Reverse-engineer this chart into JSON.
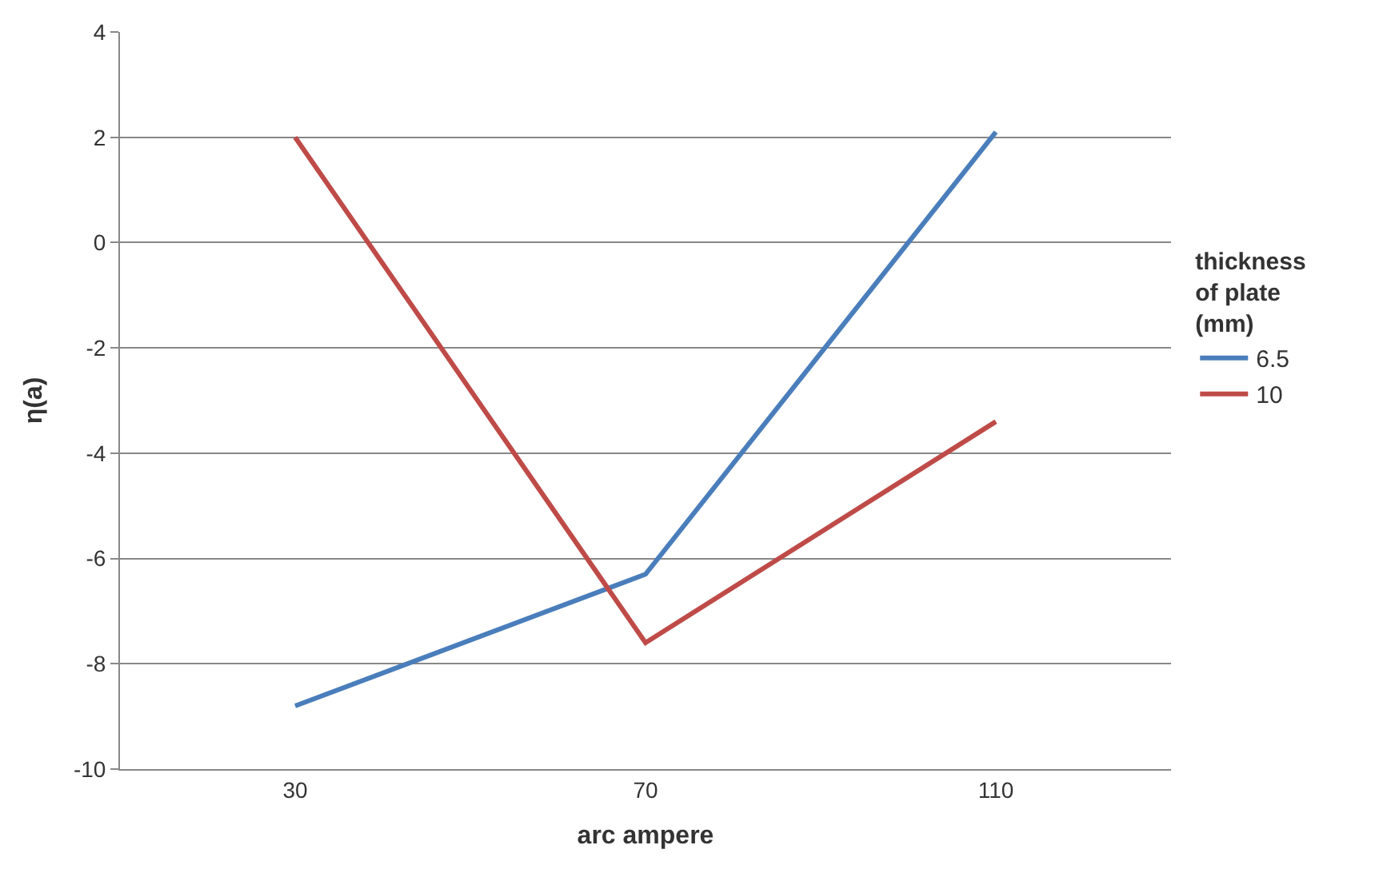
{
  "chart_data": {
    "type": "line",
    "xlabel": "arc ampere",
    "ylabel": "η(a)",
    "legend_title": "thickness of plate (mm)",
    "categories": [
      "30",
      "70",
      "110"
    ],
    "series": [
      {
        "name": "6.5",
        "color": "#4a7ebb",
        "values": [
          -8.8,
          -6.3,
          2.1
        ]
      },
      {
        "name": "10",
        "color": "#be4b48",
        "values": [
          2.0,
          -7.6,
          -3.4
        ]
      }
    ],
    "ylim": [
      -10,
      4
    ],
    "yticks": [
      -10,
      -8,
      -6,
      -4,
      -2,
      0,
      2,
      4
    ],
    "grid": "y",
    "legend": "right",
    "marker": "none",
    "line_style": "solid"
  }
}
